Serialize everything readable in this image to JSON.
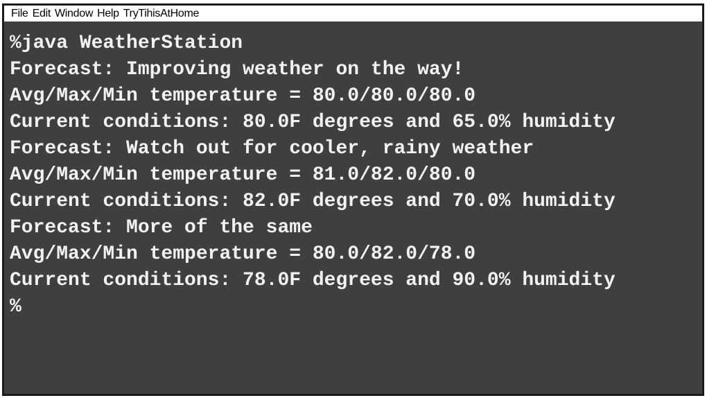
{
  "menu": {
    "items": [
      "File",
      "Edit",
      "Window",
      "Help",
      "TryTihisAtHome"
    ]
  },
  "terminal": {
    "lines": [
      "%java WeatherStation",
      "Forecast: Improving weather on the way!",
      "Avg/Max/Min temperature = 80.0/80.0/80.0",
      "Current conditions: 80.0F degrees and 65.0% humidity",
      "Forecast: Watch out for cooler, rainy weather",
      "Avg/Max/Min temperature = 81.0/82.0/80.0",
      "Current conditions: 82.0F degrees and 70.0% humidity",
      "Forecast: More of the same",
      "Avg/Max/Min temperature = 80.0/82.0/78.0",
      "Current conditions: 78.0F degrees and 90.0% humidity",
      "%"
    ]
  }
}
